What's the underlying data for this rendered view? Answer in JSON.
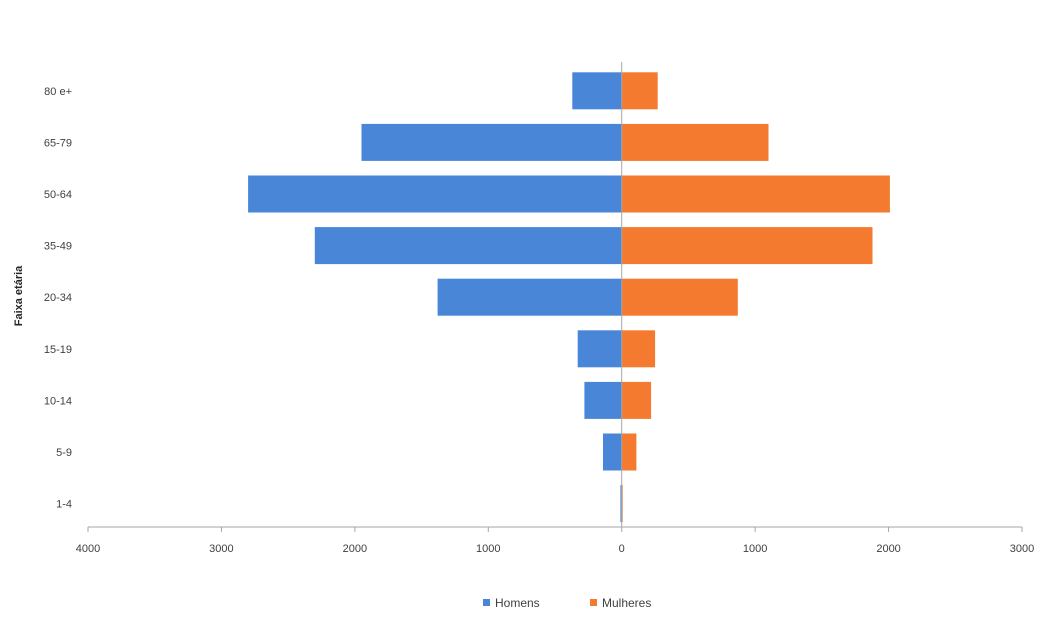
{
  "chart_data": {
    "type": "bar",
    "orientation": "horizontal",
    "title": "",
    "xlabel": "",
    "ylabel": "Faixa etária",
    "categories": [
      "80 e+",
      "65-79",
      "50-64",
      "35-49",
      "20-34",
      "15-19",
      "10-14",
      "5-9",
      "1-4"
    ],
    "series": [
      {
        "name": "Homens",
        "color": "#4a86d8",
        "values": [
          -370,
          -1950,
          -2800,
          -2300,
          -1380,
          -330,
          -280,
          -140,
          -10
        ]
      },
      {
        "name": "Mulheres",
        "color": "#f47a30",
        "values": [
          270,
          1100,
          2010,
          1880,
          870,
          250,
          220,
          110,
          5
        ]
      }
    ],
    "xlim": [
      -4000,
      3000
    ],
    "x_ticks": [
      {
        "value": -4000,
        "label": "4000"
      },
      {
        "value": -3000,
        "label": "3000"
      },
      {
        "value": -2000,
        "label": "2000"
      },
      {
        "value": -1000,
        "label": "1000"
      },
      {
        "value": 0,
        "label": "0"
      },
      {
        "value": 1000,
        "label": "1000"
      },
      {
        "value": 2000,
        "label": "2000"
      },
      {
        "value": 3000,
        "label": "3000"
      }
    ],
    "grid": false,
    "legend_position": "bottom-center"
  }
}
